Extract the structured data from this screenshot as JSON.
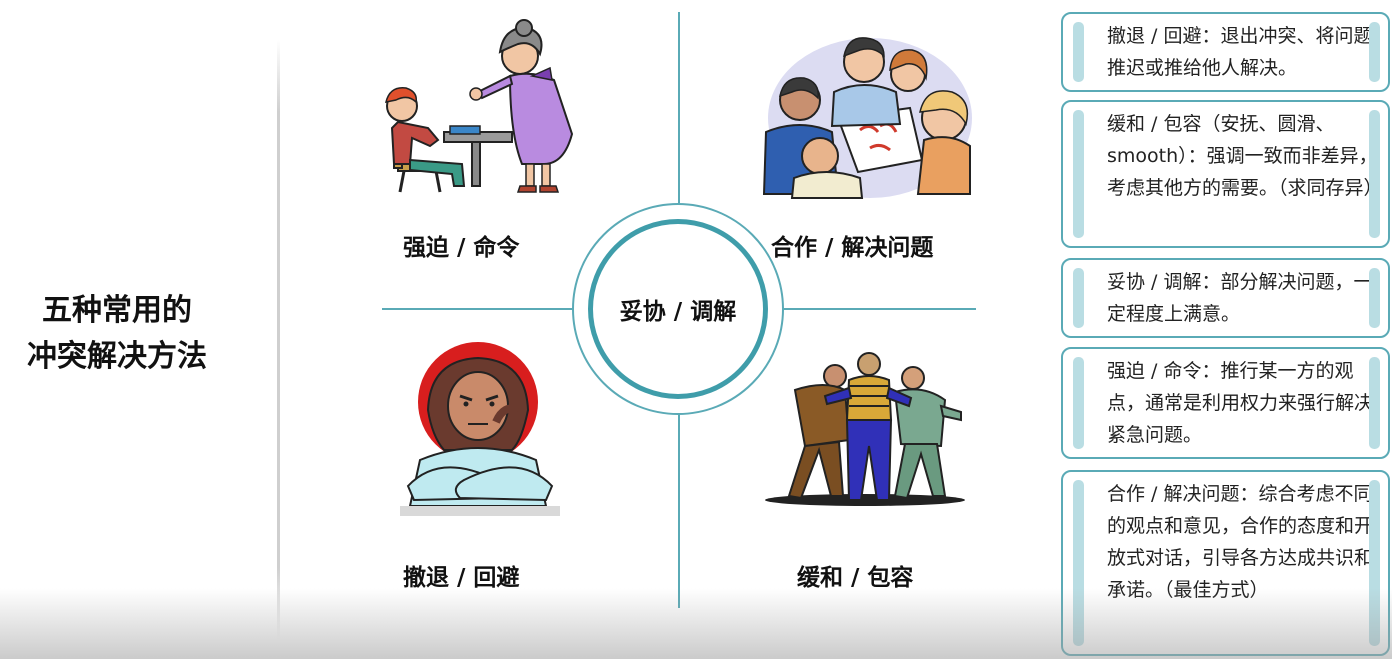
{
  "title_line1": "五种常用的",
  "title_line2": "冲突解决方法",
  "center_label": "妥协 / 调解",
  "quadrants": {
    "top_left": "强迫 / 命令",
    "top_right": "合作 / 解决问题",
    "bottom_left": "撤退 / 回避",
    "bottom_right": "缓和 / 包容"
  },
  "panels": [
    "撤退 / 回避：退出冲突、将问题推迟或推给他人解决。",
    "缓和 / 包容（安抚、圆滑、smooth）：强调一致而非差异，考虑其他方的需要。（求同存异）",
    "妥协 / 调解：部分解决问题，一定程度上满意。",
    "强迫 / 命令：推行某一方的观点，通常是利用权力来强行解决紧急问题。",
    "合作 / 解决问题：综合考虑不同的观点和意见，合作的态度和开放式对话，引导各方达成共识和承诺。（最佳方式）"
  ]
}
